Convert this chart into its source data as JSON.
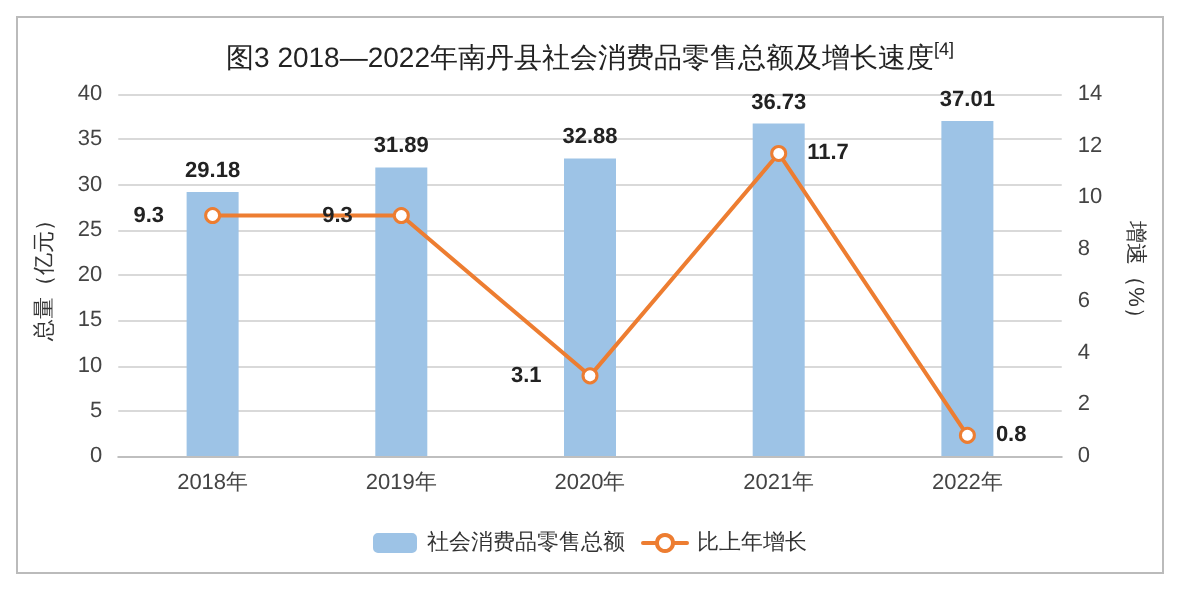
{
  "chart_data": {
    "type": "bar",
    "title": "图3 2018—2022年南丹县社会消费品零售总额及增长速度$^{[4]}$",
    "categories": [
      "2018年",
      "2019年",
      "2020年",
      "2021年",
      "2022年"
    ],
    "series": [
      {
        "name": "社会消费品零售总额",
        "color": "#9dc3e6",
        "values": [
          29.18,
          31.89,
          32.88,
          36.73,
          37.01
        ]
      },
      {
        "name": "比上年增长",
        "type": "line",
        "axis": "y2",
        "color": "#ed7d31",
        "values": [
          9.3,
          9.3,
          3.1,
          11.7,
          0.8
        ]
      }
    ],
    "ylabel": "总量（亿元）",
    "y2label": "增速（%）",
    "ylim": [
      0,
      40
    ],
    "yticks": [
      0,
      5,
      10,
      15,
      20,
      25,
      30,
      35,
      40
    ],
    "y2lim": [
      0,
      14
    ],
    "y2ticks": [
      0,
      2,
      4,
      6,
      8,
      10,
      12,
      14
    ],
    "data_labels": true,
    "grid": "y",
    "legend": "bottom",
    "marker": "circle",
    "line_style": "solid"
  }
}
